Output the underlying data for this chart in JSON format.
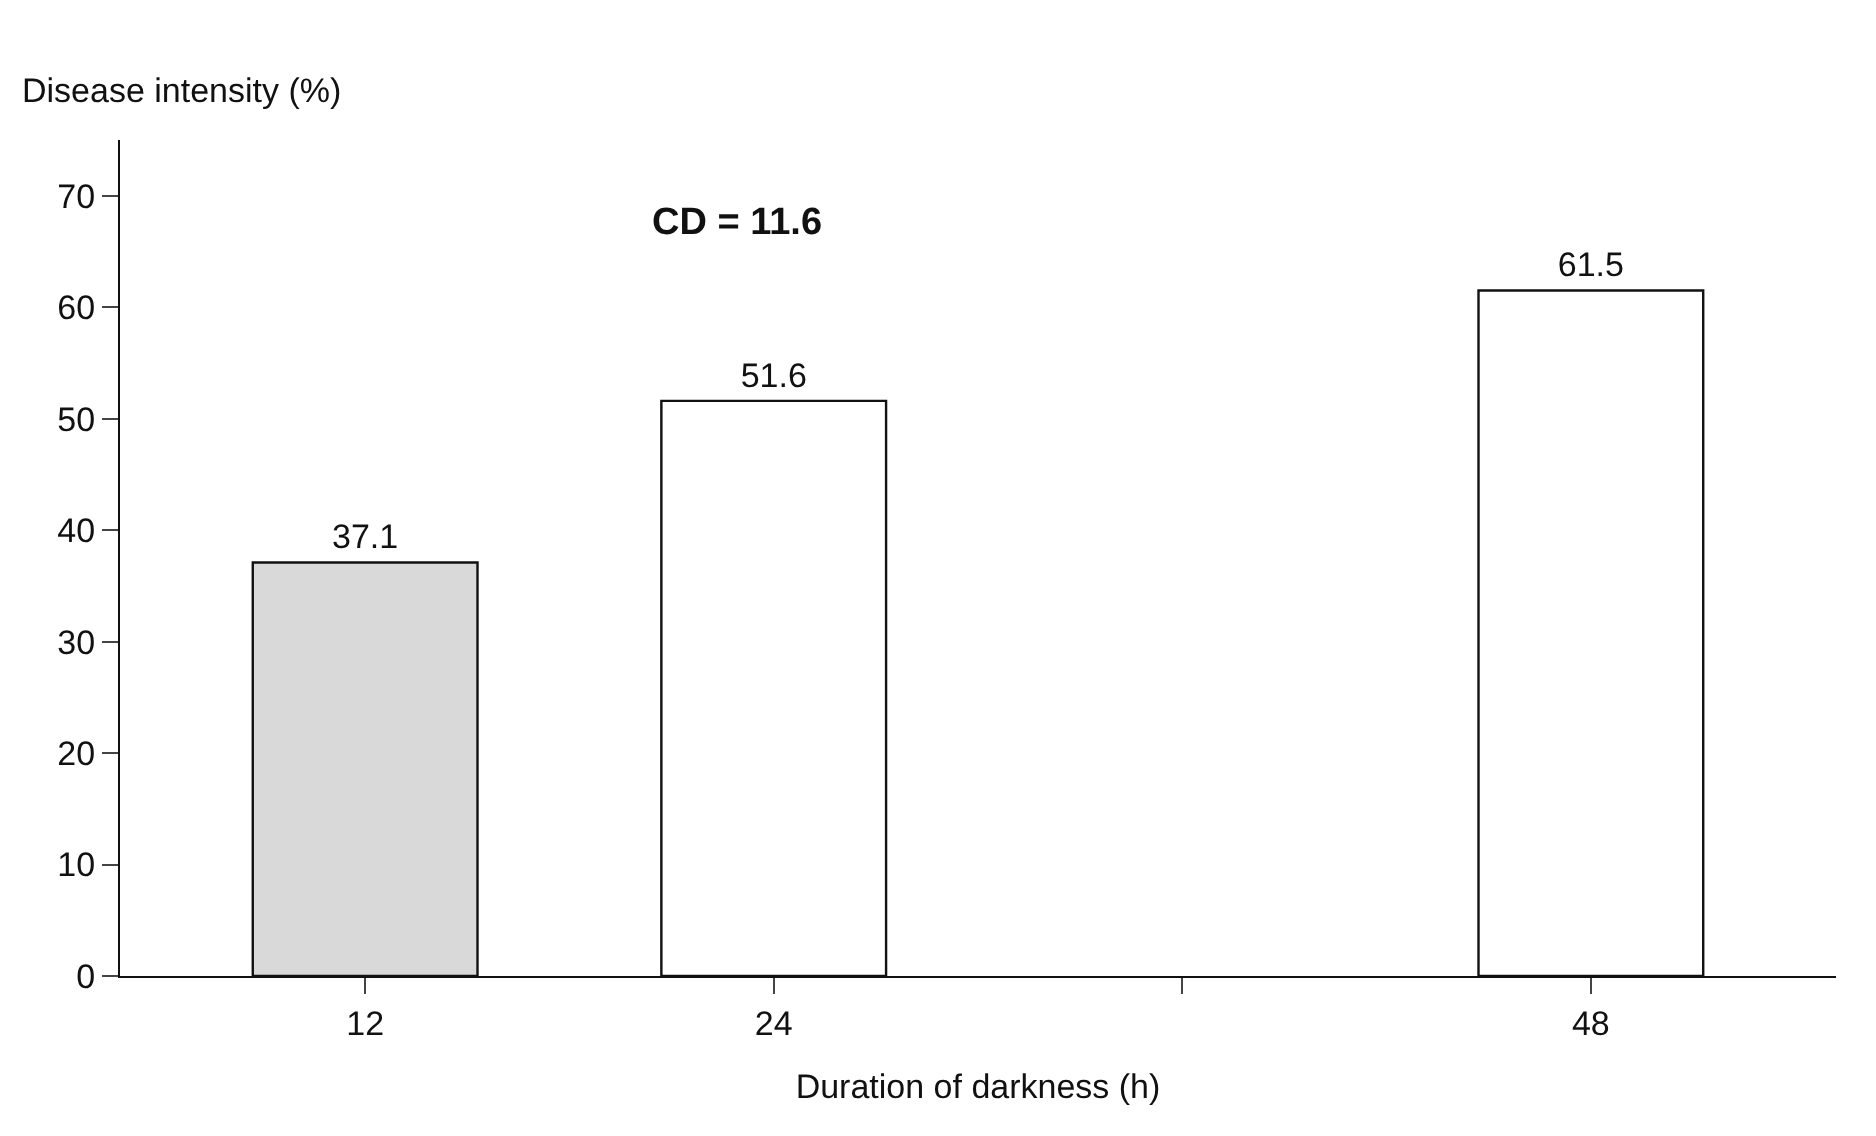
{
  "chart_data": {
    "type": "bar",
    "xlabel": "Duration of darkness (h)",
    "ylabel": "Disease intensity (%)",
    "categories": [
      "12",
      "24",
      null,
      "48"
    ],
    "values": [
      37.1,
      51.6,
      null,
      61.5
    ],
    "colors": [
      "#d9d9d9",
      "#ffffff",
      "#ffffff",
      "#ffffff"
    ],
    "ylim": [
      0,
      75
    ],
    "yticks": [
      0,
      10,
      20,
      30,
      40,
      50,
      60,
      70
    ],
    "data_labels": true,
    "annotations": [
      "CD = 11.6"
    ]
  }
}
